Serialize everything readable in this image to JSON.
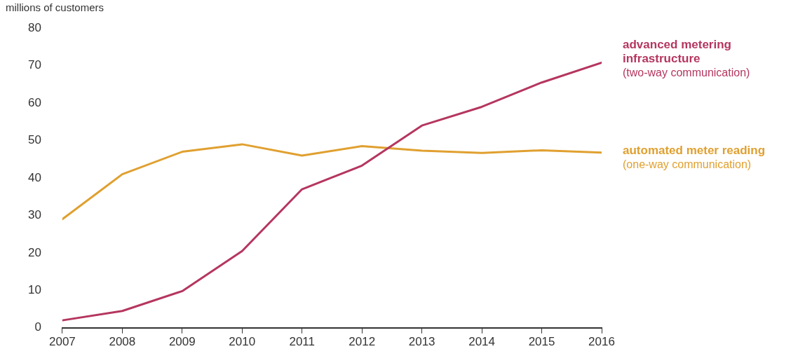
{
  "chart_data": {
    "type": "line",
    "ylabel": "millions of customers",
    "x": [
      2007,
      2008,
      2009,
      2010,
      2011,
      2012,
      2013,
      2014,
      2015,
      2016
    ],
    "xlim": [
      2007,
      2016
    ],
    "xticks": [
      2007,
      2008,
      2009,
      2010,
      2011,
      2012,
      2013,
      2014,
      2015,
      2016
    ],
    "ylim": [
      0,
      80
    ],
    "yticks": [
      0,
      10,
      20,
      30,
      40,
      50,
      60,
      70,
      80
    ],
    "grid": false,
    "legend": false,
    "marker": "none",
    "line_style": "solid",
    "series": [
      {
        "name": "advanced metering infrastructure (two-way communication)",
        "color": "#b5365f",
        "values": [
          2,
          4.5,
          9.8,
          20.5,
          37,
          43.3,
          54,
          59,
          65.5,
          70.8
        ]
      },
      {
        "name": "automated meter reading (one-way communication)",
        "color": "#e0a030",
        "values": [
          29,
          41,
          47,
          49,
          46,
          48.5,
          47.3,
          46.7,
          47.4,
          46.8
        ]
      }
    ]
  }
}
